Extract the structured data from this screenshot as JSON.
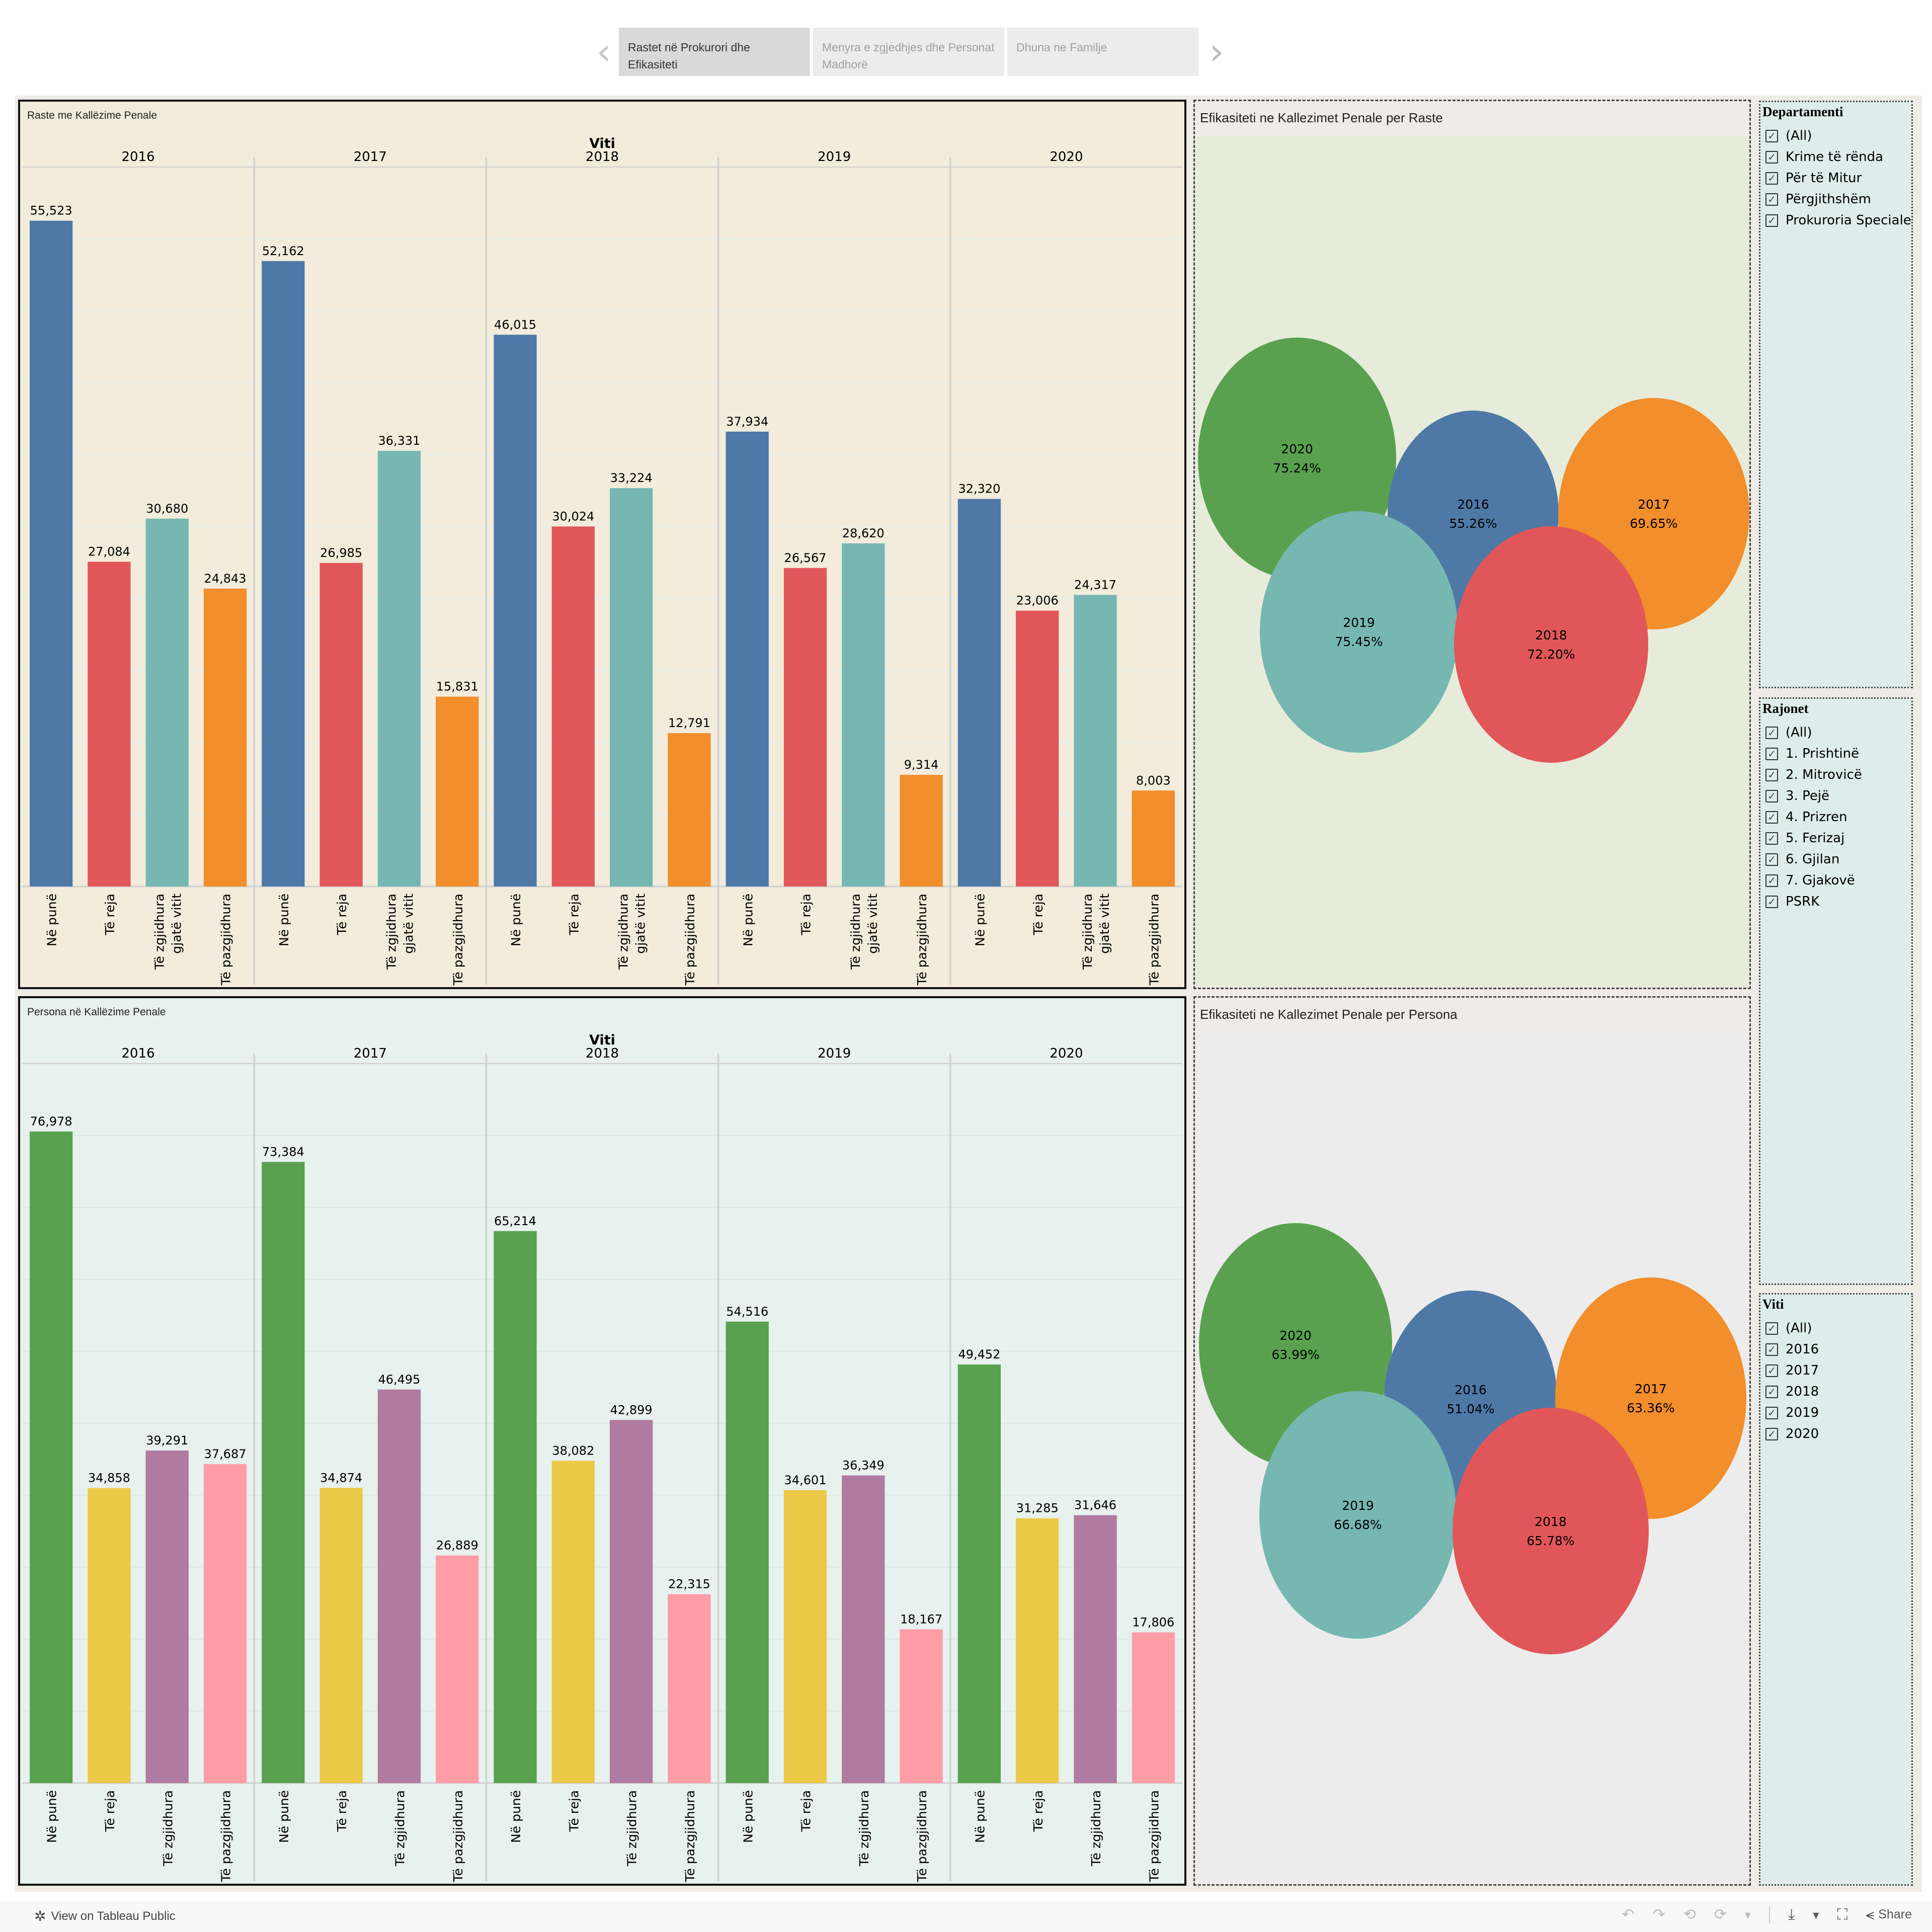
{
  "nav": {
    "tabs": [
      {
        "label": "Rastet në Prokurori dhe Efikasiteti",
        "active": true
      },
      {
        "label": "Menyra e zgjedhjes dhe Personat Madhorë",
        "active": false
      },
      {
        "label": "Dhuna ne Familje",
        "active": false
      }
    ],
    "prev_icon": "‹",
    "next_icon": "›"
  },
  "colors": {
    "raste": [
      "#4e79a7",
      "#e15759",
      "#76b7b2",
      "#f28e2b"
    ],
    "persona": [
      "#59a14f",
      "#edc948",
      "#b07aa1",
      "#ff9da7"
    ],
    "years": {
      "2016": "#4e79a7",
      "2017": "#f28e2b",
      "2018": "#e15759",
      "2019": "#76b7b2",
      "2020": "#59a14f"
    }
  },
  "chart_data": [
    {
      "type": "bar",
      "title": "Raste me Kallëzime Penale",
      "column_header": "Viti",
      "groups": [
        "2016",
        "2017",
        "2018",
        "2019",
        "2020"
      ],
      "categories": [
        "Në punë",
        "Të reja",
        "Të zgjidhura gjatë vitit",
        "Të pazgjidhura"
      ],
      "category_lines": [
        [
          "Në punë"
        ],
        [
          "Të reja"
        ],
        [
          "Të zgjidhura",
          "gjatë vitit"
        ],
        [
          "Të pazgjidhura"
        ]
      ],
      "values": [
        [
          55523,
          27084,
          30680,
          24843
        ],
        [
          52162,
          26985,
          36331,
          15831
        ],
        [
          46015,
          30024,
          33224,
          12791
        ],
        [
          37934,
          26567,
          28620,
          9314
        ],
        [
          32320,
          23006,
          24317,
          8003
        ]
      ],
      "labels": [
        [
          "55,523",
          "27,084",
          "30,680",
          "24,843"
        ],
        [
          "52,162",
          "26,985",
          "36,331",
          "15,831"
        ],
        [
          "46,015",
          "30,024",
          "33,224",
          "12,791"
        ],
        [
          "37,934",
          "26,567",
          "28,620",
          "9,314"
        ],
        [
          "32,320",
          "23,006",
          "24,317",
          "8,003"
        ]
      ],
      "ylim": [
        0,
        60000
      ],
      "grid": true
    },
    {
      "type": "bar",
      "title": "Persona në Kallëzime Penale",
      "column_header": "Viti",
      "groups": [
        "2016",
        "2017",
        "2018",
        "2019",
        "2020"
      ],
      "categories": [
        "Në punë",
        "Të reja",
        "Të zgjidhura",
        "Të pazgjidhura"
      ],
      "category_lines": [
        [
          "Në punë"
        ],
        [
          "Të reja"
        ],
        [
          "Të zgjidhura"
        ],
        [
          "Të pazgjidhura"
        ]
      ],
      "values": [
        [
          76978,
          34858,
          39291,
          37687
        ],
        [
          73384,
          34874,
          46495,
          26889
        ],
        [
          65214,
          38082,
          42899,
          22315
        ],
        [
          54516,
          34601,
          36349,
          18167
        ],
        [
          49452,
          31285,
          31646,
          17806
        ]
      ],
      "labels": [
        [
          "76,978",
          "34,858",
          "39,291",
          "37,687"
        ],
        [
          "73,384",
          "34,874",
          "46,495",
          "26,889"
        ],
        [
          "65,214",
          "38,082",
          "42,899",
          "22,315"
        ],
        [
          "54,516",
          "34,601",
          "36,349",
          "18,167"
        ],
        [
          "49,452",
          "31,285",
          "31,646",
          "17,806"
        ]
      ],
      "ylim": [
        0,
        85000
      ],
      "grid": true
    },
    {
      "type": "bubble",
      "title": "Efikasiteti ne Kallezimet Penale per Raste",
      "points": [
        {
          "year": "2020",
          "label": "75.24%",
          "value": 75.24
        },
        {
          "year": "2016",
          "label": "55.26%",
          "value": 55.26
        },
        {
          "year": "2017",
          "label": "69.65%",
          "value": 69.65
        },
        {
          "year": "2019",
          "label": "75.45%",
          "value": 75.45
        },
        {
          "year": "2018",
          "label": "72.20%",
          "value": 72.2
        }
      ]
    },
    {
      "type": "bubble",
      "title": "Efikasiteti ne Kallezimet Penale per Persona",
      "points": [
        {
          "year": "2020",
          "label": "63.99%",
          "value": 63.99
        },
        {
          "year": "2016",
          "label": "51.04%",
          "value": 51.04
        },
        {
          "year": "2017",
          "label": "63.36%",
          "value": 63.36
        },
        {
          "year": "2019",
          "label": "66.68%",
          "value": 66.68
        },
        {
          "year": "2018",
          "label": "65.78%",
          "value": 65.78
        }
      ]
    }
  ],
  "filters": {
    "departamenti": {
      "title": "Departamenti",
      "items": [
        "(All)",
        "Krime të rënda",
        "Për të Mitur",
        "Përgjithshëm",
        "Prokuroria Speciale"
      ]
    },
    "rajonet": {
      "title": "Rajonet",
      "items": [
        "(All)",
        "1. Prishtinë",
        "2. Mitrovicë",
        "3. Pejë",
        "4. Prizren",
        "5. Ferizaj",
        "6. Gjilan",
        "7. Gjakovë",
        "PSRK"
      ]
    },
    "viti": {
      "title": "Viti",
      "items": [
        "(All)",
        "2016",
        "2017",
        "2018",
        "2019",
        "2020"
      ]
    },
    "check_icon": "✓"
  },
  "footer": {
    "view_label": "View on Tableau Public",
    "share_label": "Share",
    "tableau_icon": "✲",
    "undo_icon": "↶",
    "redo_icon": "↷",
    "revert_icon": "⟲",
    "refresh_icon": "⟳",
    "dropdown_icon": "▾",
    "download_icon": "⤓",
    "fullscreen_icon": "⛶",
    "share_icon": "⪪"
  }
}
